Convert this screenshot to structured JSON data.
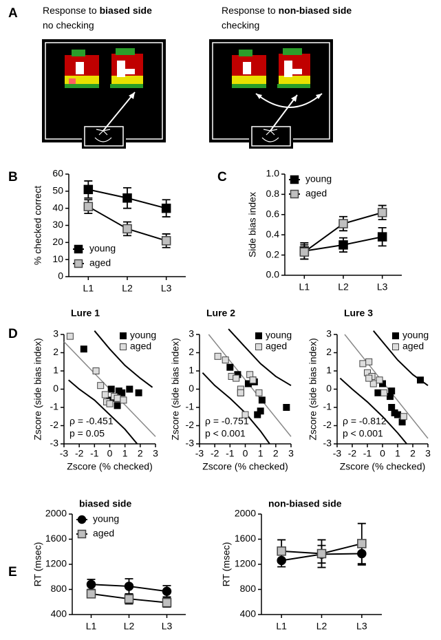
{
  "panel_labels": [
    "A",
    "B",
    "C",
    "D",
    "E"
  ],
  "panel_a": {
    "left": {
      "title_prefix": "Response to",
      "title_bold": "biased side",
      "subtitle": "no checking"
    },
    "right": {
      "title_prefix": "Response to",
      "title_bold": "non-biased side",
      "subtitle": "checking"
    }
  },
  "chart_data": [
    {
      "type": "line",
      "ylabel": "% checked correct",
      "categories": [
        "L1",
        "L2",
        "L3"
      ],
      "ylim": [
        0,
        60
      ],
      "yticks": [
        0,
        10,
        20,
        30,
        40,
        50,
        60
      ],
      "legend": "lower left",
      "series": [
        {
          "name": "young",
          "color": "#000000",
          "marker": "square",
          "values": [
            51,
            46,
            40
          ],
          "errors": [
            5,
            6,
            5
          ]
        },
        {
          "name": "aged",
          "color": "#bfbfbf",
          "marker": "square",
          "values": [
            41,
            28,
            21
          ],
          "errors": [
            4,
            4,
            4
          ]
        }
      ]
    },
    {
      "type": "line",
      "ylabel": "Side bias index",
      "categories": [
        "L1",
        "L2",
        "L3"
      ],
      "ylim": [
        0,
        1
      ],
      "yticks": [
        {
          "value": 0,
          "label": "0.0"
        },
        0.2,
        0.4,
        0.6,
        0.8,
        {
          "value": 1,
          "label": "1.0"
        }
      ],
      "legend": "upper left",
      "series": [
        {
          "name": "young",
          "color": "#000000",
          "marker": "square",
          "values": [
            0.24,
            0.3,
            0.38
          ],
          "errors": [
            0.08,
            0.07,
            0.09
          ]
        },
        {
          "name": "aged",
          "color": "#bfbfbf",
          "marker": "square",
          "values": [
            0.23,
            0.51,
            0.62
          ],
          "errors": [
            0.07,
            0.07,
            0.07
          ]
        }
      ]
    },
    {
      "type": "scatter",
      "title": "Lure 1",
      "xlabel": "Zscore (% checked)",
      "ylabel": "Zscore (side bias index)",
      "xlim": [
        -3,
        3
      ],
      "ylim": [
        -3,
        3
      ],
      "xticks": [
        -3,
        -2,
        -1,
        0,
        1,
        2,
        3
      ],
      "yticks": [
        -3,
        -2,
        -1,
        0,
        1,
        2,
        3
      ],
      "legend": "upper right",
      "annotations": [
        "ρ = -0.451",
        "p = 0.05"
      ],
      "series": [
        {
          "name": "young",
          "color": "#000000",
          "x": [
            -1.7,
            0.1,
            0.4,
            0.5,
            0.6,
            0.8,
            1.3,
            1.9,
            0.0
          ],
          "values": [
            2.2,
            0.0,
            -0.5,
            -0.9,
            -0.1,
            -0.2,
            0.0,
            -0.2,
            -0.6
          ]
        },
        {
          "name": "aged",
          "color": "#dddddd",
          "x": [
            -2.6,
            -0.9,
            -0.6,
            -0.3,
            -0.2,
            0.0,
            0.3,
            0.5,
            0.9
          ],
          "values": [
            2.9,
            1.0,
            0.2,
            -0.3,
            -0.7,
            -0.8,
            -0.4,
            -0.5,
            -0.6
          ]
        }
      ],
      "fit": {
        "x": [
          -3,
          3
        ],
        "y": [
          2.6,
          -2.6
        ]
      },
      "band_upper": {
        "x": [
          -1.0,
          0,
          1,
          2,
          2.8
        ],
        "y": [
          3.2,
          2.2,
          1.3,
          0.6,
          0.1
        ]
      },
      "band_lower": {
        "x": [
          -2.7,
          -2,
          -1,
          0,
          1,
          1.8
        ],
        "y": [
          0.5,
          0.0,
          -0.6,
          -1.4,
          -2.2,
          -3.0
        ]
      }
    },
    {
      "type": "scatter",
      "title": "Lure 2",
      "xlabel": "Zscore (% checked)",
      "ylabel": "Zscore (side bias index)",
      "xlim": [
        -3,
        3
      ],
      "ylim": [
        -3,
        3
      ],
      "xticks": [
        -3,
        -2,
        -1,
        0,
        1,
        2,
        3
      ],
      "yticks": [
        -3,
        -2,
        -1,
        0,
        1,
        2,
        3
      ],
      "legend": "upper right",
      "annotations": [
        "ρ = -0.751",
        "p < 0.001"
      ],
      "series": [
        {
          "name": "young",
          "color": "#000000",
          "x": [
            -1.0,
            -0.5,
            0.2,
            0.5,
            0.6,
            0.8,
            1.0,
            1.1,
            2.7,
            -0.3
          ],
          "values": [
            1.2,
            0.8,
            0.3,
            0.5,
            0.4,
            -1.4,
            -1.2,
            -0.6,
            -1.0,
            -0.2
          ]
        },
        {
          "name": "aged",
          "color": "#dddddd",
          "x": [
            -1.8,
            -1.3,
            -0.9,
            -0.6,
            -0.3,
            -0.3,
            0.3,
            0.5,
            0.9,
            0.0
          ],
          "values": [
            1.8,
            1.6,
            0.7,
            0.6,
            0.0,
            -0.2,
            0.8,
            0.5,
            -0.2,
            -1.4
          ]
        }
      ],
      "fit": {
        "x": [
          -2.4,
          3
        ],
        "y": [
          3,
          -2.6
        ]
      },
      "band_upper": {
        "x": [
          -1.1,
          0,
          1,
          2,
          3
        ],
        "y": [
          3.3,
          2.3,
          1.4,
          0.7,
          0.2
        ]
      },
      "band_lower": {
        "x": [
          -2.8,
          -2,
          -1,
          0,
          1,
          1.6
        ],
        "y": [
          0.9,
          0.2,
          -0.5,
          -1.3,
          -2.3,
          -3.0
        ]
      }
    },
    {
      "type": "scatter",
      "title": "Lure 3",
      "xlabel": "Zscore (% checked)",
      "ylabel": "Zscore (side bias index)",
      "xlim": [
        -3,
        3
      ],
      "ylim": [
        -3,
        3
      ],
      "xticks": [
        -3,
        -2,
        -1,
        0,
        1,
        2,
        3
      ],
      "yticks": [
        -3,
        -2,
        -1,
        0,
        1,
        2,
        3
      ],
      "legend": "upper right",
      "annotations": [
        "ρ = -0.812",
        "p < 0.001"
      ],
      "series": [
        {
          "name": "young",
          "color": "#000000",
          "x": [
            2.5,
            0.0,
            0.5,
            0.6,
            0.8,
            1.0,
            1.3,
            0.6,
            -0.3
          ],
          "values": [
            0.5,
            0.3,
            -0.4,
            -1.0,
            -1.3,
            -1.4,
            -1.8,
            -0.1,
            -0.2
          ]
        },
        {
          "name": "aged",
          "color": "#dddddd",
          "x": [
            -1.3,
            -0.9,
            -1.0,
            -0.6,
            -0.7,
            -0.2,
            0.1,
            1.4,
            -0.9
          ],
          "values": [
            1.4,
            1.5,
            0.9,
            0.3,
            0.7,
            0.5,
            -0.2,
            -1.5,
            0.6
          ]
        }
      ],
      "fit": {
        "x": [
          -2.5,
          3
        ],
        "y": [
          3,
          -2.7
        ]
      },
      "band_upper": {
        "x": [
          -0.6,
          0,
          1,
          2,
          3
        ],
        "y": [
          3.2,
          2.6,
          1.6,
          0.8,
          0.2
        ]
      },
      "band_lower": {
        "x": [
          -2.8,
          -2,
          -1,
          0,
          1,
          1.6
        ],
        "y": [
          0.6,
          0,
          -0.7,
          -1.5,
          -2.4,
          -3.0
        ]
      }
    },
    {
      "type": "line",
      "title": "biased side",
      "ylabel": "RT (msec)",
      "categories": [
        "L1",
        "L2",
        "L3"
      ],
      "ylim": [
        400,
        2000
      ],
      "yticks": [
        400,
        800,
        1200,
        1600,
        2000
      ],
      "legend": "upper left",
      "series": [
        {
          "name": "young",
          "color": "#000000",
          "marker": "circle",
          "values": [
            880,
            850,
            770
          ],
          "errors": [
            80,
            120,
            90
          ]
        },
        {
          "name": "aged",
          "color": "#bfbfbf",
          "marker": "square",
          "values": [
            730,
            650,
            590
          ],
          "errors": [
            60,
            80,
            70
          ]
        }
      ]
    },
    {
      "type": "line",
      "title": "non-biased side",
      "ylabel": "RT (msec)",
      "categories": [
        "L1",
        "L2",
        "L3"
      ],
      "ylim": [
        400,
        2000
      ],
      "yticks": [
        400,
        800,
        1200,
        1600,
        2000
      ],
      "series": [
        {
          "name": "young",
          "color": "#000000",
          "marker": "circle",
          "values": [
            1260,
            1360,
            1370
          ],
          "errors": [
            100,
            140,
            180
          ]
        },
        {
          "name": "aged",
          "color": "#bfbfbf",
          "marker": "square",
          "values": [
            1410,
            1370,
            1530
          ],
          "errors": [
            180,
            220,
            320
          ]
        }
      ]
    }
  ]
}
